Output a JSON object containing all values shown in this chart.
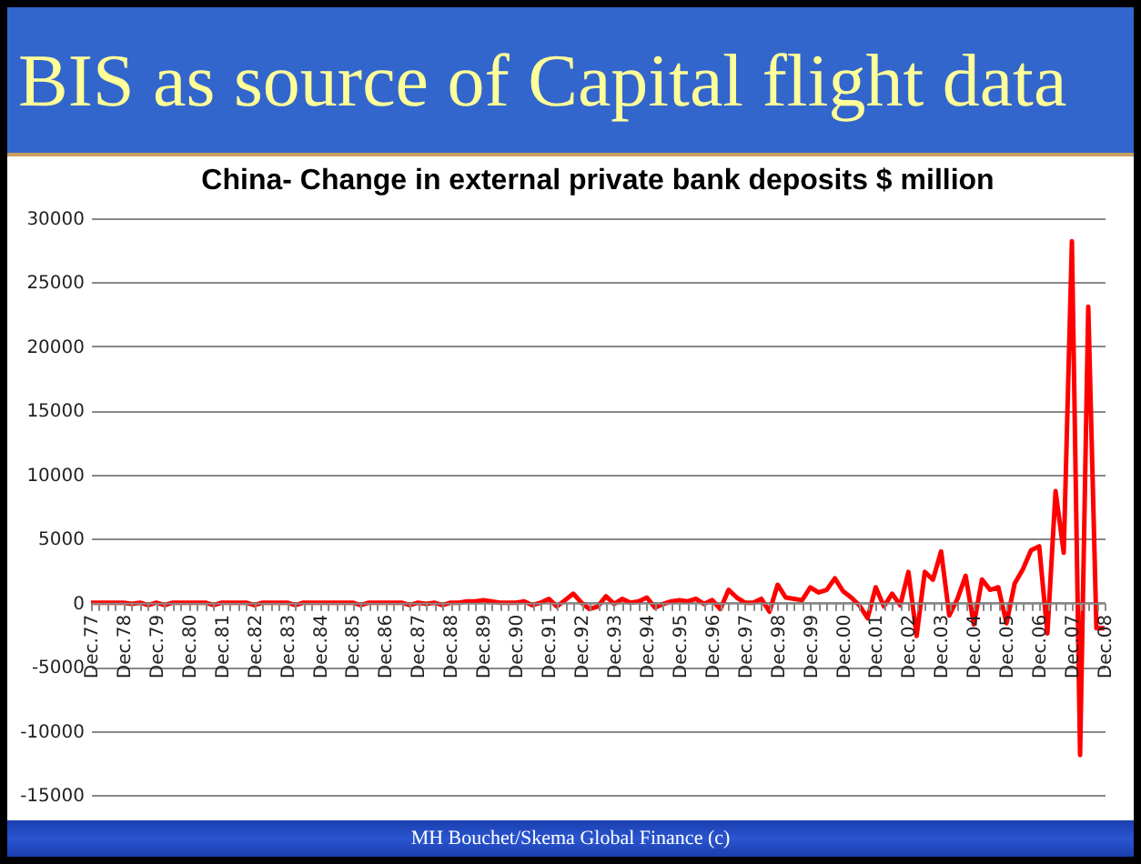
{
  "chart_data": {
    "type": "line",
    "title": "BIS as source of Capital flight data",
    "subtitle": "China- Change in external private bank deposits $ million",
    "annotations": [
      "MH Bouchet/Skema Global Finance (c)"
    ],
    "categories": [
      "Dec.77",
      null,
      null,
      null,
      "Dec.78",
      null,
      null,
      null,
      "Dec.79",
      null,
      null,
      null,
      "Dec.80",
      null,
      null,
      null,
      "Dec.81",
      null,
      null,
      null,
      "Dec.82",
      null,
      null,
      null,
      "Dec.83",
      null,
      null,
      null,
      "Dec.84",
      null,
      null,
      null,
      "Dec.85",
      null,
      null,
      null,
      "Dec.86",
      null,
      null,
      null,
      "Dec.87",
      null,
      null,
      null,
      "Dec.88",
      null,
      null,
      null,
      "Dec.89",
      null,
      null,
      null,
      "Dec.90",
      null,
      null,
      null,
      "Dec.91",
      null,
      null,
      null,
      "Dec.92",
      null,
      null,
      null,
      "Dec.93",
      null,
      null,
      null,
      "Dec.94",
      null,
      null,
      null,
      "Dec.95",
      null,
      null,
      null,
      "Dec.96",
      null,
      null,
      null,
      "Dec.97",
      null,
      null,
      null,
      "Dec.98",
      null,
      null,
      null,
      "Dec.99",
      null,
      null,
      null,
      "Dec.00",
      null,
      null,
      null,
      "Dec.01",
      null,
      null,
      null,
      "Dec.02",
      null,
      null,
      null,
      "Dec.03",
      null,
      null,
      null,
      "Dec.04",
      null,
      null,
      null,
      "Dec.05",
      null,
      null,
      null,
      "Dec.06",
      null,
      null,
      null,
      "Dec.07",
      null,
      null,
      null,
      "Dec.08"
    ],
    "values": [
      0,
      0,
      0,
      0,
      0,
      -100,
      0,
      -200,
      0,
      -200,
      0,
      0,
      0,
      0,
      0,
      -200,
      0,
      0,
      0,
      0,
      -200,
      0,
      0,
      0,
      0,
      -200,
      0,
      0,
      0,
      0,
      0,
      0,
      0,
      -200,
      0,
      0,
      0,
      0,
      0,
      -200,
      0,
      -100,
      0,
      -200,
      0,
      0,
      100,
      100,
      200,
      100,
      0,
      0,
      0,
      100,
      -200,
      0,
      300,
      -300,
      200,
      700,
      0,
      -500,
      -300,
      500,
      -100,
      300,
      0,
      100,
      400,
      -400,
      -100,
      100,
      200,
      100,
      300,
      -100,
      200,
      -500,
      1000,
      400,
      0,
      0,
      300,
      -700,
      1400,
      400,
      300,
      200,
      1200,
      800,
      1000,
      1900,
      900,
      400,
      -200,
      -1200,
      1200,
      -300,
      700,
      -200,
      2400,
      -2600,
      2400,
      1800,
      4000,
      -1000,
      300,
      2100,
      -1700,
      1800,
      1000,
      1200,
      -1600,
      1500,
      2600,
      4100,
      4400,
      -2400,
      8700,
      3900,
      28200,
      -11900,
      23100,
      -2000,
      -2000
    ],
    "color": "#ff0000",
    "ylim": [
      -15000,
      30000
    ],
    "yticks": [
      -15000,
      -10000,
      -5000,
      0,
      5000,
      10000,
      15000,
      20000,
      25000,
      30000
    ],
    "grid": "y"
  }
}
